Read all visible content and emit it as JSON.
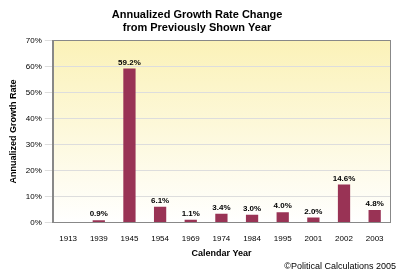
{
  "chart_data": {
    "type": "bar",
    "title": [
      "Annualized Growth Rate Change",
      "from Previously Shown Year"
    ],
    "x_label": "Calendar Year",
    "y_label": "Annualized Growth Rate",
    "annotation": "©Political Calculations 2005",
    "categories": [
      "1913",
      "1939",
      "1945",
      "1954",
      "1969",
      "1974",
      "1984",
      "1995",
      "2001",
      "2002",
      "2003"
    ],
    "values": [
      null,
      0.9,
      59.2,
      6.1,
      1.1,
      3.4,
      3.0,
      4.0,
      2.0,
      14.6,
      4.8
    ],
    "value_labels": [
      null,
      "0.9%",
      "59.2%",
      "6.1%",
      "1.1%",
      "3.4%",
      "3.0%",
      "4.0%",
      "2.0%",
      "14.6%",
      "4.8%"
    ],
    "data_labels": true,
    "color": "#993355",
    "ylim": [
      0,
      70
    ],
    "yticks": [
      {
        "value": 0,
        "label": "0%"
      },
      {
        "value": 10,
        "label": "10%"
      },
      {
        "value": 20,
        "label": "20%"
      },
      {
        "value": 30,
        "label": "30%"
      },
      {
        "value": 40,
        "label": "40%"
      },
      {
        "value": 50,
        "label": "50%"
      },
      {
        "value": 60,
        "label": "60%"
      },
      {
        "value": 70,
        "label": "70%"
      }
    ],
    "grid": true
  }
}
